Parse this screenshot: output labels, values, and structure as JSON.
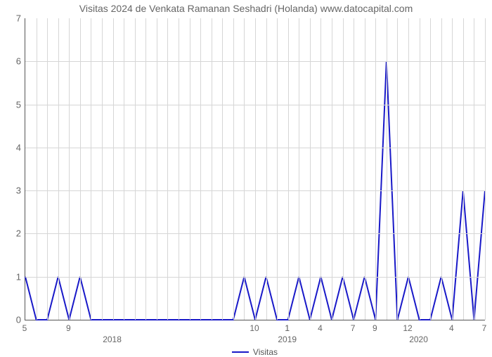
{
  "chart": {
    "type": "line",
    "title": "Visitas 2024 de Venkata Ramanan Seshadri (Holanda) www.datocapital.com",
    "title_color": "#666666",
    "title_fontsize": 14,
    "background_color": "#ffffff",
    "grid_color": "#d6d6d6",
    "axis_color": "#555555",
    "tick_label_color": "#666666",
    "tick_fontsize": 13,
    "line_color": "#1919c8",
    "line_width": 2,
    "ylim": [
      0,
      7
    ],
    "ytick_step": 1,
    "legend": {
      "label": "Visitas",
      "position": "bottom"
    },
    "x_ticks": [
      {
        "pos": 0,
        "label": "5"
      },
      {
        "pos": 4,
        "label": "9"
      },
      {
        "pos": 8,
        "label": "2018",
        "year": true
      },
      {
        "pos": 21,
        "label": "10"
      },
      {
        "pos": 24,
        "label": "1",
        "with_year": "2019"
      },
      {
        "pos": 27,
        "label": "4"
      },
      {
        "pos": 30,
        "label": "7"
      },
      {
        "pos": 32,
        "label": "9"
      },
      {
        "pos": 35,
        "label": "12"
      },
      {
        "pos": 36,
        "label": "2020",
        "year": true,
        "nolabel_month": true
      },
      {
        "pos": 39,
        "label": "4"
      },
      {
        "pos": 42,
        "label": "7"
      }
    ],
    "x_count": 43,
    "values": [
      1,
      0,
      0,
      1,
      0,
      1,
      0,
      0,
      0,
      0,
      0,
      0,
      0,
      0,
      0,
      0,
      0,
      0,
      0,
      0,
      1,
      0,
      1,
      0,
      0,
      1,
      0,
      1,
      0,
      1,
      0,
      1,
      0,
      6,
      0,
      1,
      0,
      0,
      1,
      0,
      3,
      0,
      3
    ]
  }
}
